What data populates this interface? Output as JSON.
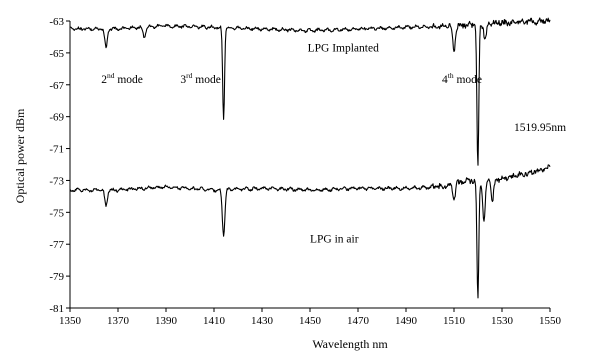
{
  "chart_data": {
    "type": "line",
    "xlabel": "Wavelength nm",
    "ylabel": "Optical power dBm",
    "xlim": [
      1350,
      1550
    ],
    "ylim": [
      -81,
      -63
    ],
    "x_ticks": [
      1350,
      1370,
      1390,
      1410,
      1430,
      1450,
      1470,
      1490,
      1510,
      1530,
      1550
    ],
    "y_ticks": [
      -63,
      -65,
      -67,
      -69,
      -71,
      -73,
      -75,
      -77,
      -79,
      -81
    ],
    "grid": false,
    "legend": "none",
    "line_color": "#000000",
    "series": [
      {
        "baseline": [
          [
            1350,
            -63.5
          ],
          [
            1370,
            -63.5
          ],
          [
            1390,
            -63.3
          ],
          [
            1410,
            -63.4
          ],
          [
            1430,
            -63.5
          ],
          [
            1450,
            -63.6
          ],
          [
            1470,
            -63.5
          ],
          [
            1490,
            -63.4
          ],
          [
            1510,
            -63.3
          ],
          [
            1530,
            -63.1
          ],
          [
            1550,
            -63.0
          ]
        ],
        "dips": [
          [
            1365,
            -64.7
          ],
          [
            1381,
            -64.0
          ],
          [
            1414,
            -69.2
          ],
          [
            1510,
            -64.9
          ],
          [
            1519.95,
            -72.2
          ],
          [
            1523,
            -64.2
          ]
        ]
      },
      {
        "baseline": [
          [
            1350,
            -73.6
          ],
          [
            1370,
            -73.6
          ],
          [
            1390,
            -73.4
          ],
          [
            1410,
            -73.6
          ],
          [
            1430,
            -73.5
          ],
          [
            1450,
            -73.6
          ],
          [
            1470,
            -73.5
          ],
          [
            1490,
            -73.5
          ],
          [
            1505,
            -73.4
          ],
          [
            1515,
            -73.0
          ],
          [
            1530,
            -72.9
          ],
          [
            1545,
            -72.4
          ],
          [
            1550,
            -72.2
          ]
        ],
        "dips": [
          [
            1365,
            -74.6
          ],
          [
            1414,
            -76.4
          ],
          [
            1510,
            -74.2
          ],
          [
            1519.95,
            -80.4
          ],
          [
            1522.5,
            -75.5
          ],
          [
            1526,
            -74.3
          ]
        ]
      }
    ],
    "annotations": [
      {
        "base": "2",
        "sup": "nd",
        "tail": " mode",
        "x": 1363,
        "y": -66.9
      },
      {
        "base": "3",
        "sup": "rd",
        "tail": " mode",
        "x": 1396,
        "y": -66.9
      },
      {
        "base": "4",
        "sup": "th",
        "tail": " mode",
        "x": 1505,
        "y": -66.9
      },
      {
        "base": "LPG Implanted",
        "sup": "",
        "tail": "",
        "x": 1449,
        "y": -64.9
      },
      {
        "base": "1519.95nm",
        "sup": "",
        "tail": "",
        "x": 1535,
        "y": -69.9
      },
      {
        "base": "LPG in air",
        "sup": "",
        "tail": "",
        "x": 1450,
        "y": -76.9
      }
    ]
  }
}
